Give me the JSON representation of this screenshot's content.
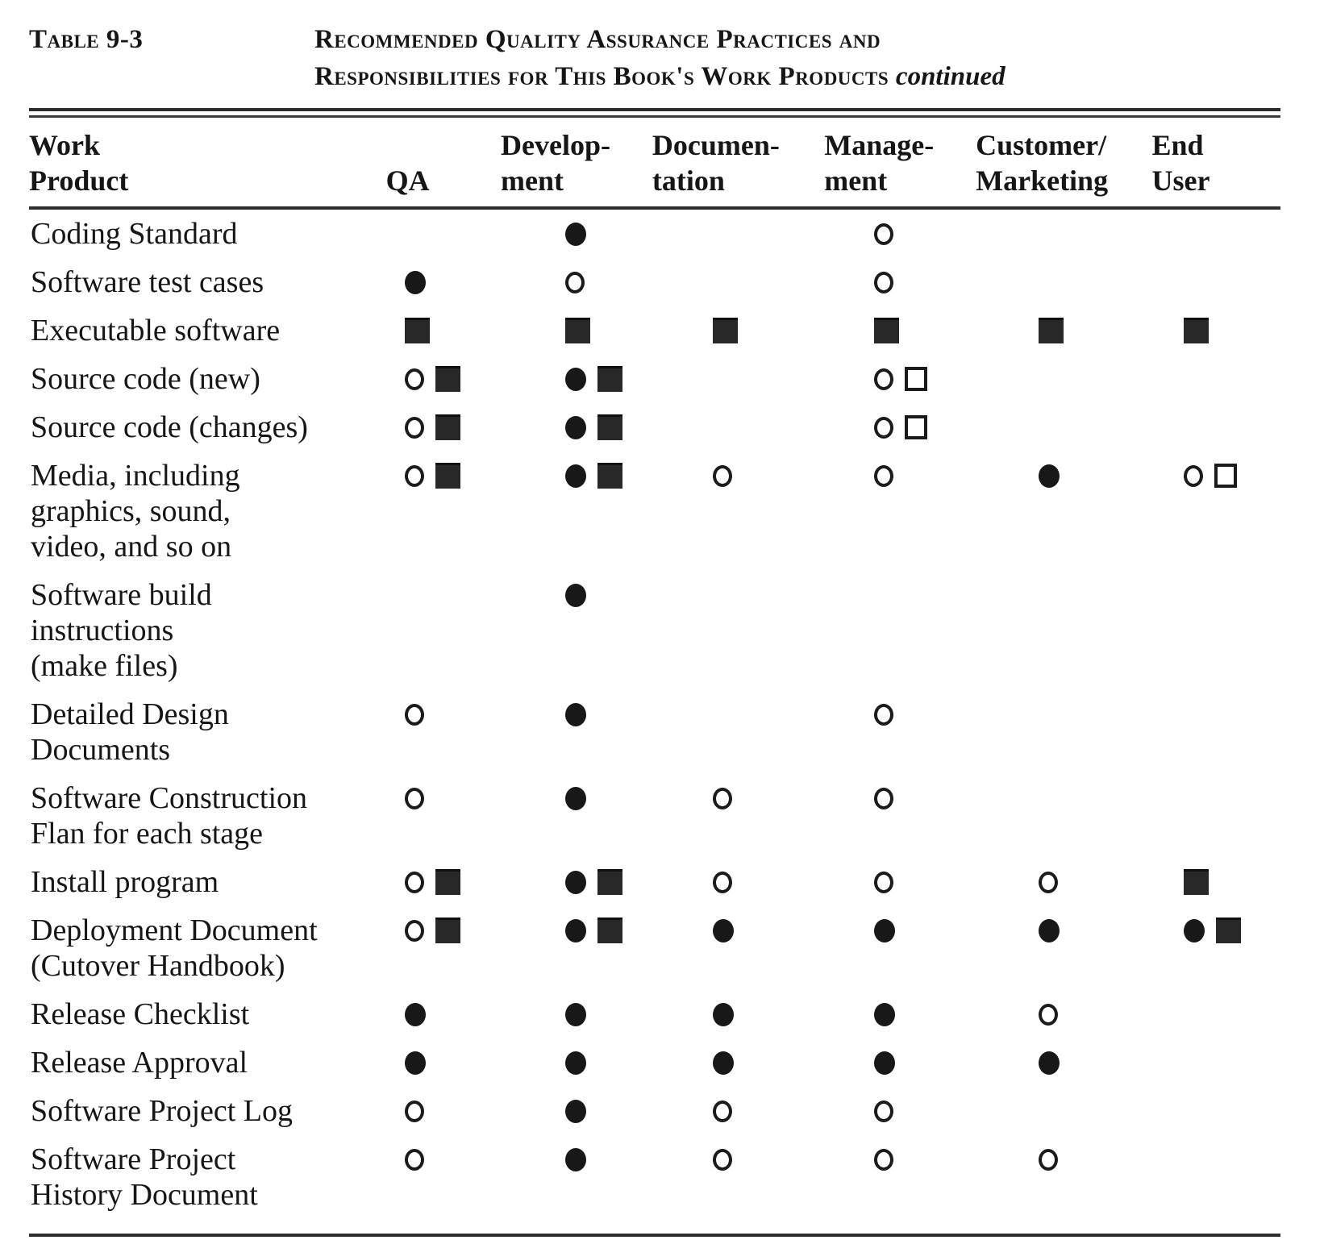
{
  "page": {
    "label": "Table 9-3",
    "title_line_1": "Recommended Quality Assurance Practices and",
    "title_line_2": "Responsibilities for This Book's Work Products",
    "title_suffix": "continued"
  },
  "table": {
    "columns": [
      {
        "id": "work_product",
        "label": "Work\nProduct"
      },
      {
        "id": "qa",
        "label": "QA"
      },
      {
        "id": "development",
        "label": "Develop-\nment"
      },
      {
        "id": "documentation",
        "label": "Documen-\ntation"
      },
      {
        "id": "management",
        "label": "Manage-\nment"
      },
      {
        "id": "customer_marketing",
        "label": "Customer/\nMarketing"
      },
      {
        "id": "end_user",
        "label": "End\nUser"
      }
    ],
    "symbol_names": {
      "filled-circle": "filled circle",
      "open-circle": "open circle",
      "filled-square": "filled square",
      "open-square": "open square"
    },
    "rows": [
      {
        "label": "Coding Standard",
        "qa": [],
        "development": [
          "filled-circle"
        ],
        "documentation": [],
        "management": [
          "open-circle"
        ],
        "customer_marketing": [],
        "end_user": []
      },
      {
        "label": "Software test cases",
        "qa": [
          "filled-circle"
        ],
        "development": [
          "open-circle"
        ],
        "documentation": [],
        "management": [
          "open-circle"
        ],
        "customer_marketing": [],
        "end_user": []
      },
      {
        "label": "Executable software",
        "qa": [
          "filled-square"
        ],
        "development": [
          "filled-square"
        ],
        "documentation": [
          "filled-square"
        ],
        "management": [
          "filled-square"
        ],
        "customer_marketing": [
          "filled-square"
        ],
        "end_user": [
          "filled-square"
        ]
      },
      {
        "label": "Source code (new)",
        "qa": [
          "open-circle",
          "filled-square"
        ],
        "development": [
          "filled-circle",
          "filled-square"
        ],
        "documentation": [],
        "management": [
          "open-circle",
          "open-square"
        ],
        "customer_marketing": [],
        "end_user": []
      },
      {
        "label": "Source code (changes)",
        "qa": [
          "open-circle",
          "filled-square"
        ],
        "development": [
          "filled-circle",
          "filled-square"
        ],
        "documentation": [],
        "management": [
          "open-circle",
          "open-square"
        ],
        "customer_marketing": [],
        "end_user": []
      },
      {
        "label": "Media, including\ngraphics, sound,\nvideo, and so on",
        "qa": [
          "open-circle",
          "filled-square"
        ],
        "development": [
          "filled-circle",
          "filled-square"
        ],
        "documentation": [
          "open-circle"
        ],
        "management": [
          "open-circle"
        ],
        "customer_marketing": [
          "filled-circle"
        ],
        "end_user": [
          "open-circle",
          "open-square"
        ]
      },
      {
        "label": "Software build\ninstructions\n(make files)",
        "qa": [],
        "development": [
          "filled-circle"
        ],
        "documentation": [],
        "management": [],
        "customer_marketing": [],
        "end_user": []
      },
      {
        "label": "Detailed Design\nDocuments",
        "qa": [
          "open-circle"
        ],
        "development": [
          "filled-circle"
        ],
        "documentation": [],
        "management": [
          "open-circle"
        ],
        "customer_marketing": [],
        "end_user": []
      },
      {
        "label": "Software Construction\nFlan for each stage",
        "qa": [
          "open-circle"
        ],
        "development": [
          "filled-circle"
        ],
        "documentation": [
          "open-circle"
        ],
        "management": [
          "open-circle"
        ],
        "customer_marketing": [],
        "end_user": []
      },
      {
        "label": "Install program",
        "qa": [
          "open-circle",
          "filled-square"
        ],
        "development": [
          "filled-circle",
          "filled-square"
        ],
        "documentation": [
          "open-circle"
        ],
        "management": [
          "open-circle"
        ],
        "customer_marketing": [
          "open-circle"
        ],
        "end_user": [
          "filled-square"
        ]
      },
      {
        "label": "Deployment Document\n(Cutover Handbook)",
        "qa": [
          "open-circle",
          "filled-square"
        ],
        "development": [
          "filled-circle",
          "filled-square"
        ],
        "documentation": [
          "filled-circle"
        ],
        "management": [
          "filled-circle"
        ],
        "customer_marketing": [
          "filled-circle"
        ],
        "end_user": [
          "filled-circle",
          "filled-square"
        ]
      },
      {
        "label": "Release Checklist",
        "qa": [
          "filled-circle"
        ],
        "development": [
          "filled-circle"
        ],
        "documentation": [
          "filled-circle"
        ],
        "management": [
          "filled-circle"
        ],
        "customer_marketing": [
          "open-circle"
        ],
        "end_user": []
      },
      {
        "label": "Release Approval",
        "qa": [
          "filled-circle"
        ],
        "development": [
          "filled-circle"
        ],
        "documentation": [
          "filled-circle"
        ],
        "management": [
          "filled-circle"
        ],
        "customer_marketing": [
          "filled-circle"
        ],
        "end_user": []
      },
      {
        "label": "Software Project Log",
        "qa": [
          "open-circle"
        ],
        "development": [
          "filled-circle"
        ],
        "documentation": [
          "open-circle"
        ],
        "management": [
          "open-circle"
        ],
        "customer_marketing": [],
        "end_user": []
      },
      {
        "label": "Software Project\nHistory Document",
        "qa": [
          "open-circle"
        ],
        "development": [
          "filled-circle"
        ],
        "documentation": [
          "open-circle"
        ],
        "management": [
          "open-circle"
        ],
        "customer_marketing": [
          "open-circle"
        ],
        "end_user": []
      }
    ]
  }
}
